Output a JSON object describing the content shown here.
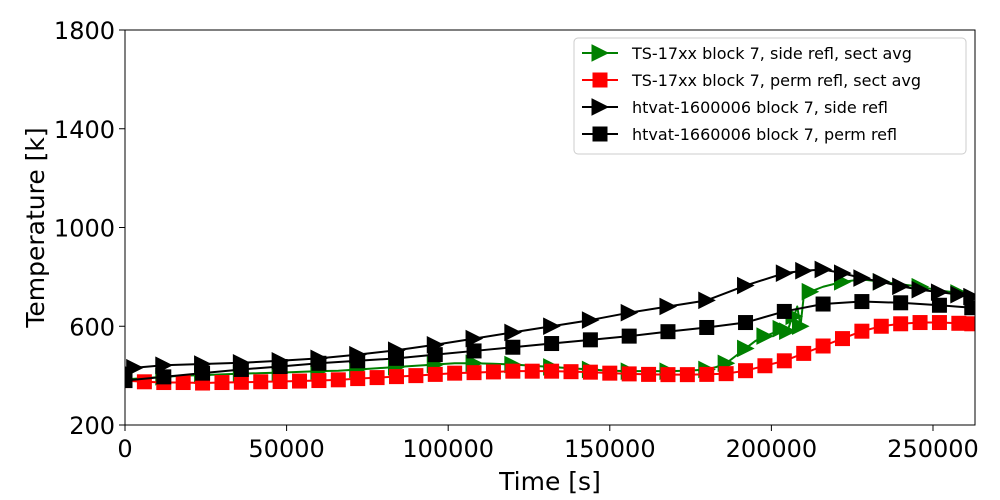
{
  "chart_data": {
    "type": "line",
    "title": "",
    "xlabel": "Time [s]",
    "ylabel": "Temperature [k]",
    "xlim": [
      0,
      263000
    ],
    "ylim": [
      200,
      1800
    ],
    "xticks": [
      0,
      50000,
      100000,
      150000,
      200000,
      250000
    ],
    "xtick_labels": [
      "0",
      "50000",
      "100000",
      "150000",
      "200000",
      "250000"
    ],
    "yticks": [
      200,
      600,
      1000,
      1400,
      1800
    ],
    "ytick_labels": [
      "200",
      "600",
      "1000",
      "1400",
      "1800"
    ],
    "grid": false,
    "legend_position": "top-right",
    "series": [
      {
        "name": "TS-17xx block 7, side refl, sect avg",
        "color": "#008000",
        "marker": "triangle-right",
        "x": [
          0,
          6000,
          12000,
          18000,
          24000,
          30000,
          36000,
          42000,
          48000,
          54000,
          60000,
          66000,
          72000,
          78000,
          84000,
          90000,
          96000,
          102000,
          108000,
          114000,
          120000,
          126000,
          132000,
          138000,
          144000,
          150000,
          156000,
          162000,
          168000,
          174000,
          180000,
          183000,
          186000,
          189000,
          192000,
          195000,
          198000,
          201000,
          203000,
          204000,
          205000,
          206000,
          207000,
          208000,
          209000,
          210000,
          212000,
          216000,
          222000,
          228000,
          234000,
          240000,
          246000,
          252000,
          258000,
          262000
        ],
        "y": [
          385,
          390,
          395,
          400,
          402,
          405,
          408,
          410,
          412,
          415,
          418,
          420,
          425,
          430,
          435,
          440,
          445,
          450,
          450,
          448,
          445,
          440,
          435,
          430,
          425,
          420,
          418,
          418,
          418,
          420,
          425,
          435,
          450,
          480,
          510,
          540,
          560,
          575,
          590,
          560,
          580,
          620,
          640,
          680,
          600,
          720,
          740,
          760,
          780,
          790,
          780,
          770,
          760,
          745,
          735,
          720
        ],
        "marker_every": 2
      },
      {
        "name": "TS-17xx block 7, perm refl, sect avg",
        "color": "#ff0000",
        "marker": "square",
        "x": [
          0,
          6000,
          12000,
          18000,
          24000,
          30000,
          36000,
          42000,
          48000,
          54000,
          60000,
          66000,
          72000,
          78000,
          84000,
          90000,
          96000,
          102000,
          108000,
          114000,
          120000,
          126000,
          132000,
          138000,
          144000,
          150000,
          156000,
          162000,
          168000,
          174000,
          180000,
          186000,
          192000,
          198000,
          204000,
          210000,
          216000,
          222000,
          228000,
          234000,
          240000,
          246000,
          252000,
          258000,
          262000
        ],
        "y": [
          380,
          375,
          372,
          372,
          370,
          372,
          373,
          375,
          376,
          378,
          380,
          383,
          388,
          392,
          396,
          400,
          405,
          410,
          412,
          415,
          418,
          418,
          418,
          416,
          414,
          410,
          407,
          405,
          404,
          404,
          405,
          408,
          420,
          440,
          460,
          490,
          520,
          550,
          580,
          600,
          610,
          615,
          615,
          612,
          610
        ],
        "marker_every": 1
      },
      {
        "name": "htvat-1600006 block 7, side refl",
        "color": "#000000",
        "marker": "triangle-right",
        "x": [
          0,
          3000,
          12000,
          24000,
          36000,
          48000,
          60000,
          72000,
          84000,
          96000,
          108000,
          120000,
          132000,
          144000,
          156000,
          168000,
          180000,
          192000,
          204000,
          210000,
          216000,
          222000,
          228000,
          234000,
          240000,
          246000,
          252000,
          258000,
          262000
        ],
        "y": [
          420,
          432,
          442,
          447,
          452,
          460,
          470,
          485,
          503,
          525,
          550,
          575,
          600,
          625,
          655,
          680,
          705,
          765,
          815,
          825,
          830,
          815,
          795,
          780,
          762,
          748,
          738,
          728,
          720
        ],
        "marker_every": 1
      },
      {
        "name": "htvat-1660006 block 7, perm refl",
        "color": "#000000",
        "marker": "square",
        "x": [
          0,
          12000,
          24000,
          36000,
          48000,
          60000,
          72000,
          84000,
          96000,
          108000,
          120000,
          132000,
          144000,
          156000,
          168000,
          180000,
          192000,
          204000,
          216000,
          228000,
          240000,
          252000,
          262000
        ],
        "y": [
          380,
          395,
          410,
          425,
          437,
          450,
          460,
          470,
          485,
          500,
          515,
          530,
          545,
          560,
          578,
          595,
          615,
          660,
          690,
          700,
          695,
          685,
          675
        ],
        "marker_every": 1
      }
    ]
  }
}
